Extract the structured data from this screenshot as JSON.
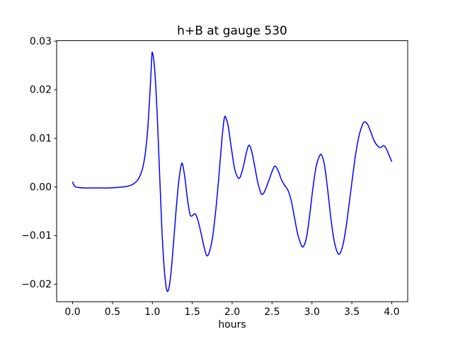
{
  "chart_data": {
    "type": "line",
    "title": "h+B at gauge 530",
    "xlabel": "hours",
    "ylabel": "",
    "grid": false,
    "legend": null,
    "axes_color": "#000000",
    "background": "#ffffff",
    "xlim": [
      -0.2,
      4.2
    ],
    "ylim": [
      -0.0236,
      0.0301
    ],
    "x_ticks": [
      0.0,
      0.5,
      1.0,
      1.5,
      2.0,
      2.5,
      3.0,
      3.5,
      4.0
    ],
    "x_tick_labels": [
      "0.0",
      "0.5",
      "1.0",
      "1.5",
      "2.0",
      "2.5",
      "3.0",
      "3.5",
      "4.0"
    ],
    "y_ticks": [
      -0.02,
      -0.01,
      0.0,
      0.01,
      0.02,
      0.03
    ],
    "y_tick_labels": [
      "−0.02",
      "−0.01",
      "0.00",
      "0.01",
      "0.02",
      "0.03"
    ],
    "series": [
      {
        "name": "h+B at gauge 530",
        "color": "#0000ff",
        "line_width": 1.5,
        "x": [
          0.0,
          0.03,
          0.08,
          0.15,
          0.25,
          0.35,
          0.45,
          0.55,
          0.63,
          0.7,
          0.76,
          0.81,
          0.85,
          0.88,
          0.91,
          0.94,
          0.97,
          0.99,
          1.0,
          1.03,
          1.06,
          1.09,
          1.12,
          1.15,
          1.18,
          1.21,
          1.24,
          1.27,
          1.3,
          1.33,
          1.36,
          1.38,
          1.41,
          1.44,
          1.47,
          1.49,
          1.52,
          1.54,
          1.57,
          1.61,
          1.65,
          1.68,
          1.71,
          1.75,
          1.79,
          1.83,
          1.87,
          1.9,
          1.92,
          1.95,
          1.99,
          2.03,
          2.07,
          2.1,
          2.14,
          2.18,
          2.21,
          2.24,
          2.28,
          2.32,
          2.36,
          2.39,
          2.43,
          2.47,
          2.51,
          2.54,
          2.58,
          2.62,
          2.66,
          2.7,
          2.74,
          2.78,
          2.82,
          2.86,
          2.89,
          2.93,
          2.97,
          3.01,
          3.05,
          3.09,
          3.12,
          3.16,
          3.2,
          3.24,
          3.28,
          3.32,
          3.35,
          3.39,
          3.43,
          3.47,
          3.51,
          3.55,
          3.59,
          3.63,
          3.66,
          3.7,
          3.74,
          3.78,
          3.82,
          3.86,
          3.89,
          3.92,
          3.95,
          3.98,
          4.0
        ],
        "y": [
          0.001,
          0.0001,
          -0.0001,
          -0.0002,
          -0.0002,
          -0.0002,
          -0.0002,
          -0.0001,
          0.0,
          0.0002,
          0.0006,
          0.0013,
          0.0025,
          0.004,
          0.0068,
          0.0115,
          0.0195,
          0.0258,
          0.0277,
          0.024,
          0.015,
          0.003,
          -0.009,
          -0.017,
          -0.0212,
          -0.0206,
          -0.0165,
          -0.0105,
          -0.0042,
          0.001,
          0.0044,
          0.0046,
          0.0016,
          -0.0025,
          -0.0055,
          -0.006,
          -0.0056,
          -0.0056,
          -0.0068,
          -0.0095,
          -0.0125,
          -0.0141,
          -0.0136,
          -0.0108,
          -0.0055,
          0.0015,
          0.0095,
          0.014,
          0.0143,
          0.0125,
          0.008,
          0.0038,
          0.002,
          0.002,
          0.0042,
          0.0072,
          0.0086,
          0.0076,
          0.0045,
          0.001,
          -0.0012,
          -0.0014,
          0.0,
          0.0018,
          0.0036,
          0.0043,
          0.0032,
          0.0014,
          0.0003,
          -0.0007,
          -0.0028,
          -0.0062,
          -0.0096,
          -0.0117,
          -0.0123,
          -0.0105,
          -0.006,
          -0.0005,
          0.004,
          0.0062,
          0.0066,
          0.0042,
          -0.001,
          -0.0068,
          -0.0112,
          -0.0135,
          -0.0137,
          -0.0118,
          -0.008,
          -0.003,
          0.0022,
          0.007,
          0.0105,
          0.0127,
          0.0134,
          0.0128,
          0.0112,
          0.0095,
          0.0085,
          0.0081,
          0.0085,
          0.0082,
          0.0072,
          0.006,
          0.0053
        ]
      }
    ]
  }
}
